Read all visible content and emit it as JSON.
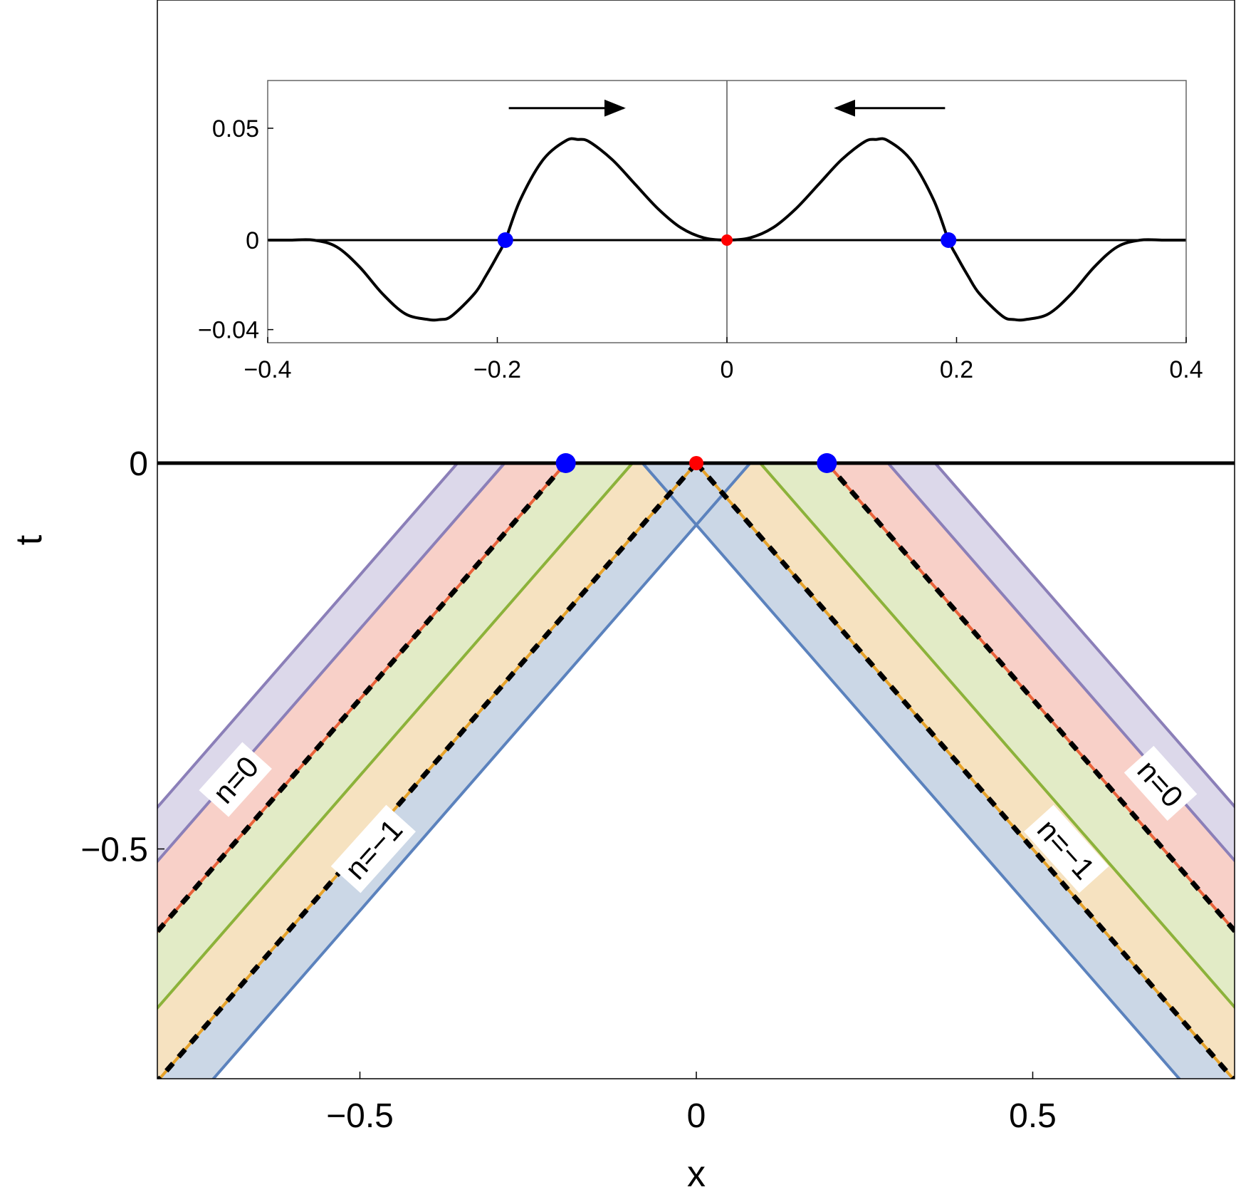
{
  "chart_data": [
    {
      "type": "area",
      "xlabel": "x",
      "ylabel": "t",
      "xlim": [
        -0.8,
        0.8
      ],
      "ylim": [
        -0.8,
        0.55
      ],
      "x_ticks": [
        {
          "value": -0.5,
          "label": "−0.5"
        },
        {
          "value": 0,
          "label": "0"
        },
        {
          "value": 0.5,
          "label": "0.5"
        }
      ],
      "y_ticks": [
        {
          "value": 0,
          "label": "0"
        },
        {
          "value": -0.5,
          "label": "−0.5"
        }
      ],
      "points": [
        {
          "x": -0.194,
          "t": 0,
          "color": "#0000ff"
        },
        {
          "x": 0,
          "t": 0,
          "color": "#ff0000"
        },
        {
          "x": 0.194,
          "t": 0,
          "color": "#0000ff"
        }
      ],
      "bands": [
        {
          "x0": 0.355,
          "x1": 0.285,
          "color": "#dcd8ea"
        },
        {
          "x0": 0.285,
          "x1": 0.194,
          "color": "#f8d0c8"
        },
        {
          "x0": 0.194,
          "x1": 0.095,
          "color": "#e2ebc6"
        },
        {
          "x0": 0.095,
          "x1": 0.0,
          "color": "#f6e2c0"
        },
        {
          "x0": 0.0,
          "x1": -0.08,
          "color": "#cbd7e6"
        }
      ],
      "lines": [
        {
          "x0": 0.355,
          "color": "#8b7fb8",
          "style": "solid"
        },
        {
          "x0": 0.285,
          "color": "#8b7fb8",
          "style": "solid"
        },
        {
          "x0": 0.194,
          "color": "#e8623a",
          "style": "solid"
        },
        {
          "x0": 0.095,
          "color": "#8cb23a",
          "style": "solid"
        },
        {
          "x0": 0.0,
          "color": "#e6a22a",
          "style": "solid"
        },
        {
          "x0": -0.08,
          "color": "#5b82bd",
          "style": "solid"
        },
        {
          "x0": 0.194,
          "color": "#000000",
          "style": "dashed"
        },
        {
          "x0": 0.0,
          "color": "#000000",
          "style": "dashed"
        }
      ],
      "labels": [
        {
          "text": "n=0",
          "x": -0.685,
          "t": -0.41,
          "side": "left"
        },
        {
          "text": "n=−1",
          "x": -0.48,
          "t": -0.5,
          "side": "left"
        },
        {
          "text": "n=0",
          "x": 0.69,
          "t": -0.415,
          "side": "right"
        },
        {
          "text": "n=−1",
          "x": 0.55,
          "t": -0.5,
          "side": "right"
        }
      ]
    },
    {
      "type": "line",
      "xlim": [
        -0.4,
        0.4
      ],
      "ylim": [
        -0.044,
        0.07
      ],
      "x_ticks": [
        {
          "value": -0.4,
          "label": "−0.4"
        },
        {
          "value": -0.2,
          "label": "−0.2"
        },
        {
          "value": 0,
          "label": "0"
        },
        {
          "value": 0.2,
          "label": "0.2"
        },
        {
          "value": 0.4,
          "label": "0.4"
        }
      ],
      "y_ticks": [
        {
          "value": 0.05,
          "label": "0.05"
        },
        {
          "value": 0,
          "label": "0"
        },
        {
          "value": -0.04,
          "label": "−0.04"
        }
      ],
      "series": [
        {
          "x": [
            -0.4,
            -0.38,
            -0.36,
            -0.34,
            -0.32,
            -0.3,
            -0.28,
            -0.26,
            -0.25,
            -0.24,
            -0.22,
            -0.21,
            -0.2,
            -0.193,
            -0.18,
            -0.16,
            -0.14,
            -0.13,
            -0.12,
            -0.1,
            -0.08,
            -0.06,
            -0.04,
            -0.02,
            0,
            0.02,
            0.04,
            0.06,
            0.08,
            0.1,
            0.12,
            0.13,
            0.14,
            0.16,
            0.18,
            0.193,
            0.2,
            0.21,
            0.22,
            0.24,
            0.25,
            0.26,
            0.28,
            0.3,
            0.32,
            0.34,
            0.36,
            0.38,
            0.4
          ],
          "y": [
            0,
            0,
            0,
            -0.003,
            -0.012,
            -0.024,
            -0.033,
            -0.0355,
            -0.0355,
            -0.034,
            -0.024,
            -0.016,
            -0.007,
            0,
            0.018,
            0.036,
            0.0445,
            0.045,
            0.044,
            0.036,
            0.025,
            0.014,
            0.0055,
            0.001,
            0,
            0.001,
            0.0055,
            0.014,
            0.025,
            0.036,
            0.044,
            0.045,
            0.0445,
            0.036,
            0.018,
            0,
            -0.007,
            -0.016,
            -0.024,
            -0.034,
            -0.0355,
            -0.0355,
            -0.033,
            -0.024,
            -0.012,
            -0.003,
            0,
            0,
            0
          ]
        }
      ],
      "points": [
        {
          "x": -0.193,
          "y": 0,
          "color": "#0000ff"
        },
        {
          "x": 0,
          "y": 0,
          "color": "#ff0000"
        },
        {
          "x": 0.193,
          "y": 0,
          "color": "#0000ff"
        }
      ],
      "arrows": [
        {
          "x0": -0.19,
          "x1": -0.09,
          "y": 0.059,
          "direction": "right"
        },
        {
          "x0": 0.19,
          "x1": 0.095,
          "y": 0.059,
          "direction": "left"
        }
      ]
    }
  ]
}
